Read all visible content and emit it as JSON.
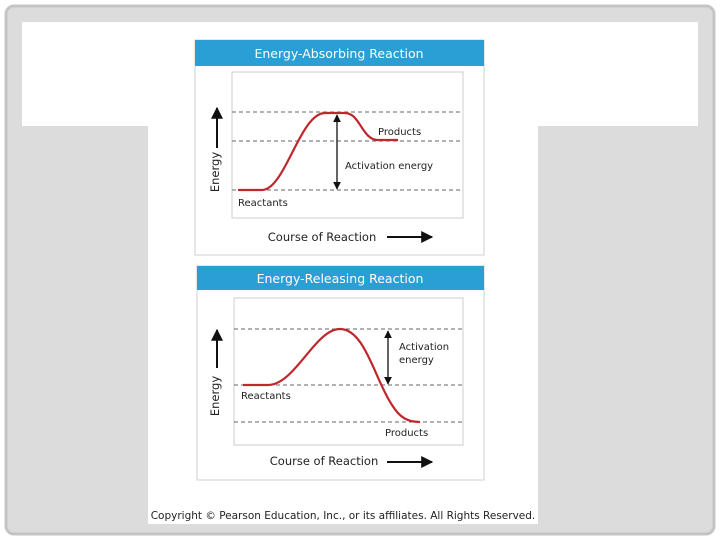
{
  "slide": {
    "copyright": "Copyright © Pearson Education, Inc., or its affiliates. All Rights Reserved."
  },
  "panels": [
    {
      "title": "Energy-Absorbing Reaction",
      "y_axis_label": "Energy",
      "x_axis_label": "Course of Reaction",
      "products_label": "Products",
      "activation_label": [
        "Activation energy"
      ],
      "reactants_label": "Reactants"
    },
    {
      "title": "Energy-Releasing Reaction",
      "y_axis_label": "Energy",
      "x_axis_label": "Course of Reaction",
      "products_label": "Products",
      "activation_label": [
        "Activation",
        "energy"
      ],
      "reactants_label": "Reactants"
    }
  ]
}
